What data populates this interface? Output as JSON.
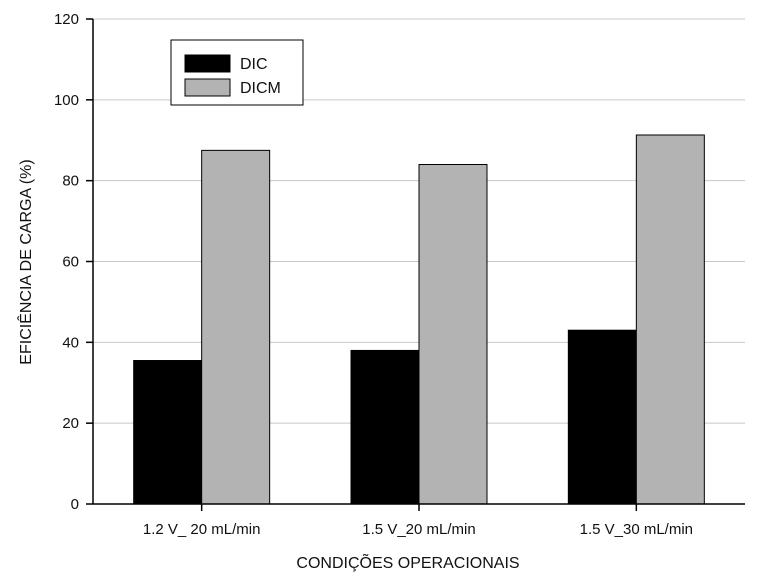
{
  "chart_data": {
    "type": "bar",
    "title": "",
    "xlabel": "CONDIÇÕES OPERACIONAIS",
    "ylabel": "EFICIÊNCIA DE CARGA (%)",
    "ylim": [
      0,
      120
    ],
    "yticks": [
      0,
      20,
      40,
      60,
      80,
      100,
      120
    ],
    "grid": true,
    "legend_position": "top-left",
    "categories": [
      "1.2 V_ 20 mL/min",
      "1.5 V_20 mL/min",
      "1.5 V_30 mL/min"
    ],
    "series": [
      {
        "name": "DIC",
        "values": [
          35.5,
          38,
          43
        ],
        "color": "#000000"
      },
      {
        "name": "DICM",
        "values": [
          87.5,
          84,
          91.3
        ],
        "color": "#b3b3b3"
      }
    ]
  }
}
